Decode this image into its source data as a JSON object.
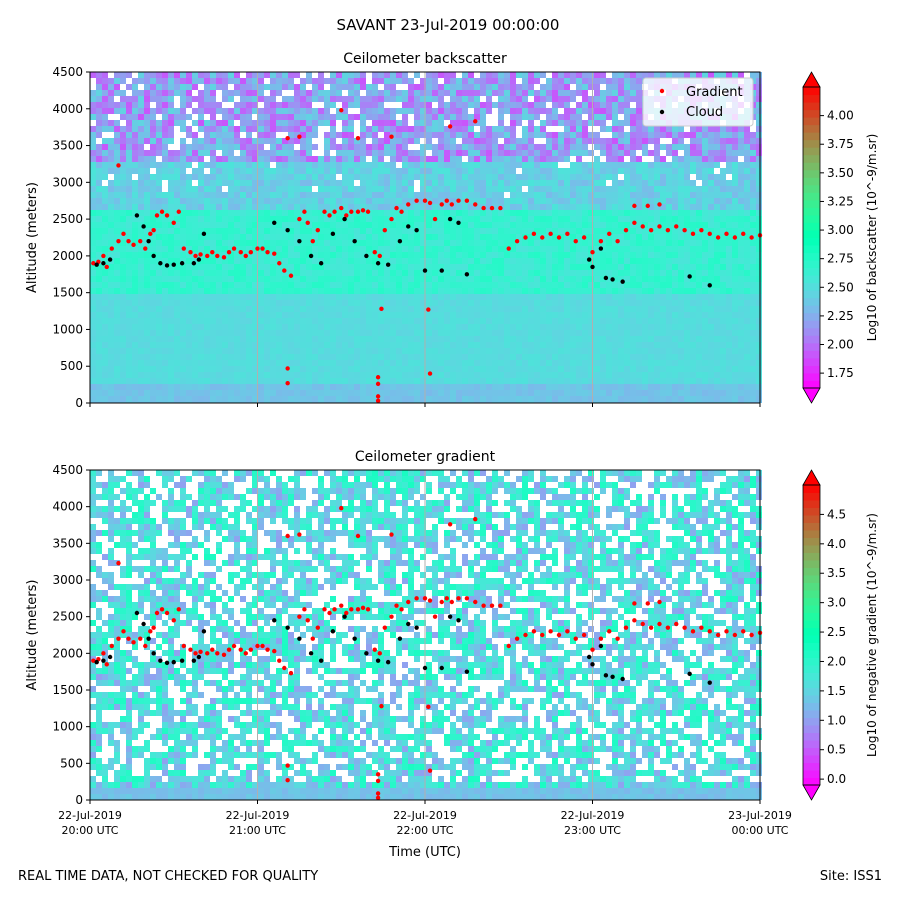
{
  "figure": {
    "title": "SAVANT 23-Jul-2019 00:00:00",
    "footer_left": "REAL TIME DATA, NOT CHECKED FOR QUALITY",
    "footer_right": "Site: ISS1"
  },
  "chart_data": [
    {
      "type": "heatmap",
      "title": "Ceilometer backscatter",
      "xlabel": "",
      "ylabel": "Altitude (meters)",
      "ylim": [
        0,
        4500
      ],
      "yticks": [
        0,
        500,
        1000,
        1500,
        2000,
        2500,
        3000,
        3500,
        4000,
        4500
      ],
      "xticks": [],
      "legend": {
        "placement": "top-right",
        "entries": [
          "Gradient",
          "Cloud"
        ]
      },
      "colorbar": {
        "label": "Log10 of backscatter (10^-9/m.sr)",
        "ticks": [
          "1.75",
          "2.00",
          "2.25",
          "2.50",
          "2.75",
          "3.00",
          "3.25",
          "3.50",
          "3.75",
          "4.00"
        ],
        "range": [
          1.62,
          4.25
        ]
      }
    },
    {
      "type": "heatmap",
      "title": "Ceilometer gradient",
      "xlabel": "Time (UTC)",
      "ylabel": "Altitude (meters)",
      "ylim": [
        0,
        4500
      ],
      "yticks": [
        0,
        500,
        1000,
        1500,
        2000,
        2500,
        3000,
        3500,
        4000,
        4500
      ],
      "xticks": [
        {
          "l1": "22-Jul-2019",
          "l2": "20:00 UTC"
        },
        {
          "l1": "22-Jul-2019",
          "l2": "21:00 UTC"
        },
        {
          "l1": "22-Jul-2019",
          "l2": "22:00 UTC"
        },
        {
          "l1": "22-Jul-2019",
          "l2": "23:00 UTC"
        },
        {
          "l1": "23-Jul-2019",
          "l2": "00:00 UTC"
        }
      ],
      "colorbar": {
        "label": "Log10 of negative gradient (10^-9/m.sr)",
        "ticks": [
          "0.0",
          "0.5",
          "1.0",
          "1.5",
          "2.0",
          "2.5",
          "3.0",
          "3.5",
          "4.0",
          "4.5"
        ],
        "range": [
          -0.1,
          5.0
        ]
      }
    }
  ],
  "series": {
    "gradient": {
      "name": "Gradient",
      "color": "#ff0000",
      "points_h_alt": [
        [
          0.02,
          1900
        ],
        [
          0.05,
          1920
        ],
        [
          0.08,
          2000
        ],
        [
          0.1,
          1850
        ],
        [
          0.13,
          2100
        ],
        [
          0.17,
          2200
        ],
        [
          0.2,
          2300
        ],
        [
          0.23,
          2200
        ],
        [
          0.26,
          2150
        ],
        [
          0.3,
          2200
        ],
        [
          0.33,
          2100
        ],
        [
          0.36,
          2300
        ],
        [
          0.38,
          2350
        ],
        [
          0.4,
          2550
        ],
        [
          0.43,
          2600
        ],
        [
          0.46,
          2550
        ],
        [
          0.5,
          2450
        ],
        [
          0.53,
          2600
        ],
        [
          0.56,
          2100
        ],
        [
          0.6,
          2050
        ],
        [
          0.63,
          2000
        ],
        [
          0.66,
          2020
        ],
        [
          0.7,
          2000
        ],
        [
          0.73,
          2050
        ],
        [
          0.76,
          2000
        ],
        [
          0.8,
          1980
        ],
        [
          0.83,
          2050
        ],
        [
          0.86,
          2100
        ],
        [
          0.9,
          2050
        ],
        [
          0.93,
          2000
        ],
        [
          0.96,
          2050
        ],
        [
          1.0,
          2100
        ],
        [
          1.03,
          2100
        ],
        [
          1.06,
          2050
        ],
        [
          1.1,
          2030
        ],
        [
          1.13,
          1900
        ],
        [
          1.16,
          1800
        ],
        [
          1.2,
          1730
        ],
        [
          1.25,
          2500
        ],
        [
          1.28,
          2600
        ],
        [
          1.3,
          2450
        ],
        [
          1.33,
          2200
        ],
        [
          1.36,
          2350
        ],
        [
          1.4,
          2600
        ],
        [
          1.43,
          2550
        ],
        [
          1.46,
          2600
        ],
        [
          1.5,
          2650
        ],
        [
          1.53,
          2550
        ],
        [
          1.56,
          2600
        ],
        [
          1.6,
          2600
        ],
        [
          1.63,
          2620
        ],
        [
          1.66,
          2600
        ],
        [
          1.7,
          2050
        ],
        [
          1.73,
          2000
        ],
        [
          1.76,
          2350
        ],
        [
          1.8,
          2500
        ],
        [
          1.83,
          2650
        ],
        [
          1.86,
          2600
        ],
        [
          1.9,
          2700
        ],
        [
          1.95,
          2750
        ],
        [
          2.0,
          2750
        ],
        [
          2.03,
          2720
        ],
        [
          2.06,
          2500
        ],
        [
          2.1,
          2700
        ],
        [
          2.13,
          2750
        ],
        [
          2.16,
          2700
        ],
        [
          2.2,
          2750
        ],
        [
          2.25,
          2750
        ],
        [
          2.3,
          2700
        ],
        [
          2.35,
          2650
        ],
        [
          2.4,
          2650
        ],
        [
          2.45,
          2650
        ],
        [
          2.5,
          2100
        ],
        [
          2.55,
          2200
        ],
        [
          2.6,
          2250
        ],
        [
          2.65,
          2300
        ],
        [
          2.7,
          2250
        ],
        [
          2.75,
          2300
        ],
        [
          2.8,
          2250
        ],
        [
          2.85,
          2300
        ],
        [
          2.9,
          2200
        ],
        [
          2.95,
          2250
        ],
        [
          3.0,
          2050
        ],
        [
          3.05,
          2200
        ],
        [
          3.1,
          2300
        ],
        [
          3.15,
          2200
        ],
        [
          3.2,
          2350
        ],
        [
          3.25,
          2450
        ],
        [
          3.3,
          2400
        ],
        [
          3.35,
          2350
        ],
        [
          3.4,
          2400
        ],
        [
          3.45,
          2350
        ],
        [
          3.5,
          2400
        ],
        [
          3.55,
          2350
        ],
        [
          3.6,
          2300
        ],
        [
          3.65,
          2350
        ],
        [
          3.7,
          2300
        ],
        [
          3.75,
          2250
        ],
        [
          3.8,
          2300
        ],
        [
          3.85,
          2250
        ],
        [
          3.9,
          2300
        ],
        [
          3.95,
          2250
        ],
        [
          4.0,
          2280
        ],
        [
          1.18,
          3600
        ],
        [
          1.25,
          3620
        ],
        [
          1.5,
          3980
        ],
        [
          1.6,
          3600
        ],
        [
          1.8,
          3620
        ],
        [
          2.15,
          3760
        ],
        [
          2.3,
          3830
        ],
        [
          3.25,
          2680
        ],
        [
          3.33,
          2680
        ],
        [
          3.4,
          2700
        ],
        [
          1.18,
          470
        ],
        [
          1.18,
          270
        ],
        [
          1.72,
          350
        ],
        [
          1.72,
          260
        ],
        [
          1.72,
          90
        ],
        [
          1.72,
          30
        ],
        [
          1.74,
          1280
        ],
        [
          2.02,
          1270
        ],
        [
          2.03,
          400
        ],
        [
          0.17,
          3230
        ]
      ]
    },
    "cloud": {
      "name": "Cloud",
      "color": "#000000",
      "points_h_alt": [
        [
          0.04,
          1880
        ],
        [
          0.08,
          1900
        ],
        [
          0.12,
          1950
        ],
        [
          0.28,
          2550
        ],
        [
          0.32,
          2400
        ],
        [
          0.35,
          2200
        ],
        [
          0.38,
          2000
        ],
        [
          0.42,
          1900
        ],
        [
          0.46,
          1870
        ],
        [
          0.5,
          1880
        ],
        [
          0.55,
          1900
        ],
        [
          0.62,
          1900
        ],
        [
          0.65,
          1950
        ],
        [
          0.68,
          2300
        ],
        [
          1.1,
          2450
        ],
        [
          1.18,
          2350
        ],
        [
          1.25,
          2200
        ],
        [
          1.32,
          2000
        ],
        [
          1.38,
          1900
        ],
        [
          1.45,
          2300
        ],
        [
          1.52,
          2500
        ],
        [
          1.58,
          2200
        ],
        [
          1.65,
          2000
        ],
        [
          1.72,
          1900
        ],
        [
          1.78,
          1880
        ],
        [
          1.85,
          2200
        ],
        [
          1.9,
          2400
        ],
        [
          1.95,
          2350
        ],
        [
          2.0,
          1800
        ],
        [
          2.1,
          1800
        ],
        [
          2.15,
          2500
        ],
        [
          2.2,
          2450
        ],
        [
          2.25,
          1750
        ],
        [
          2.98,
          1950
        ],
        [
          3.0,
          1850
        ],
        [
          3.05,
          2100
        ],
        [
          3.08,
          1700
        ],
        [
          3.12,
          1680
        ],
        [
          3.18,
          1650
        ],
        [
          3.58,
          1720
        ],
        [
          3.7,
          1600
        ]
      ]
    }
  }
}
